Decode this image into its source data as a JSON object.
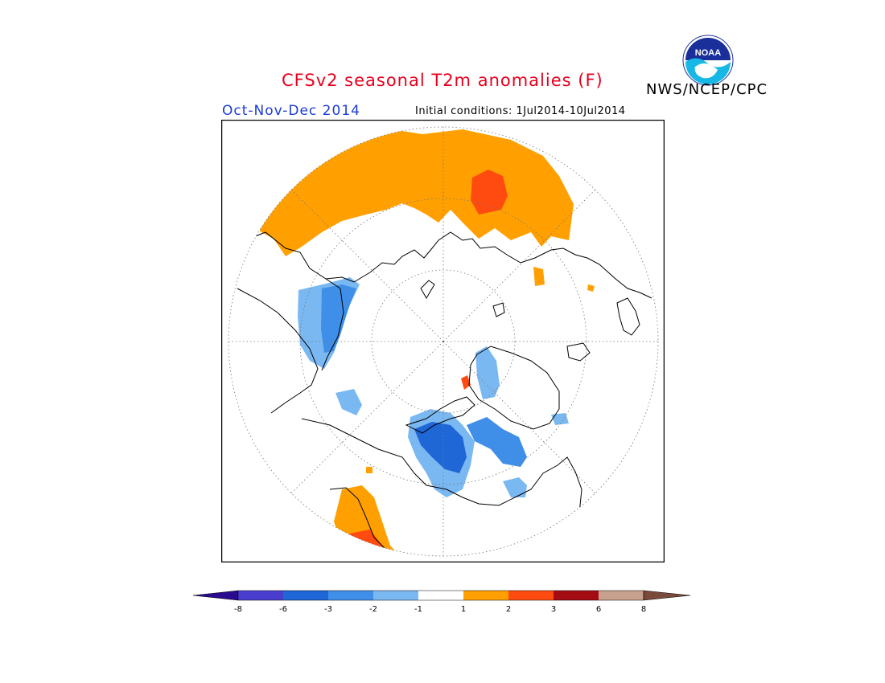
{
  "header": {
    "title": "CFSv2 seasonal T2m anomalies (F)",
    "agency": "NWS/NCEP/CPC",
    "season": "Oct-Nov-Dec 2014",
    "initial_conditions": "Initial conditions: 1Jul2014-10Jul2014",
    "logo_text": "NOAA"
  },
  "map": {
    "projection": "north-polar-stereographic",
    "graticule": "dotted",
    "land_outline_color": "#000000"
  },
  "legend": {
    "units": "F",
    "labels": [
      "-8",
      "-6",
      "-3",
      "-2",
      "-1",
      "1",
      "2",
      "3",
      "6",
      "8"
    ],
    "colors": {
      "lt_-8": "#2a0a8e",
      "-8_-6": "#4a3ecf",
      "-6_-3": "#1f66d6",
      "-3_-2": "#3f8ee8",
      "-2_-1": "#7ab8f2",
      "-1_1": "#ffffff",
      "1_2": "#ffa000",
      "2_3": "#ff4a10",
      "3_6": "#a40c14",
      "6_8": "#c8a08e",
      "gt_8": "#7a4a3a"
    }
  }
}
